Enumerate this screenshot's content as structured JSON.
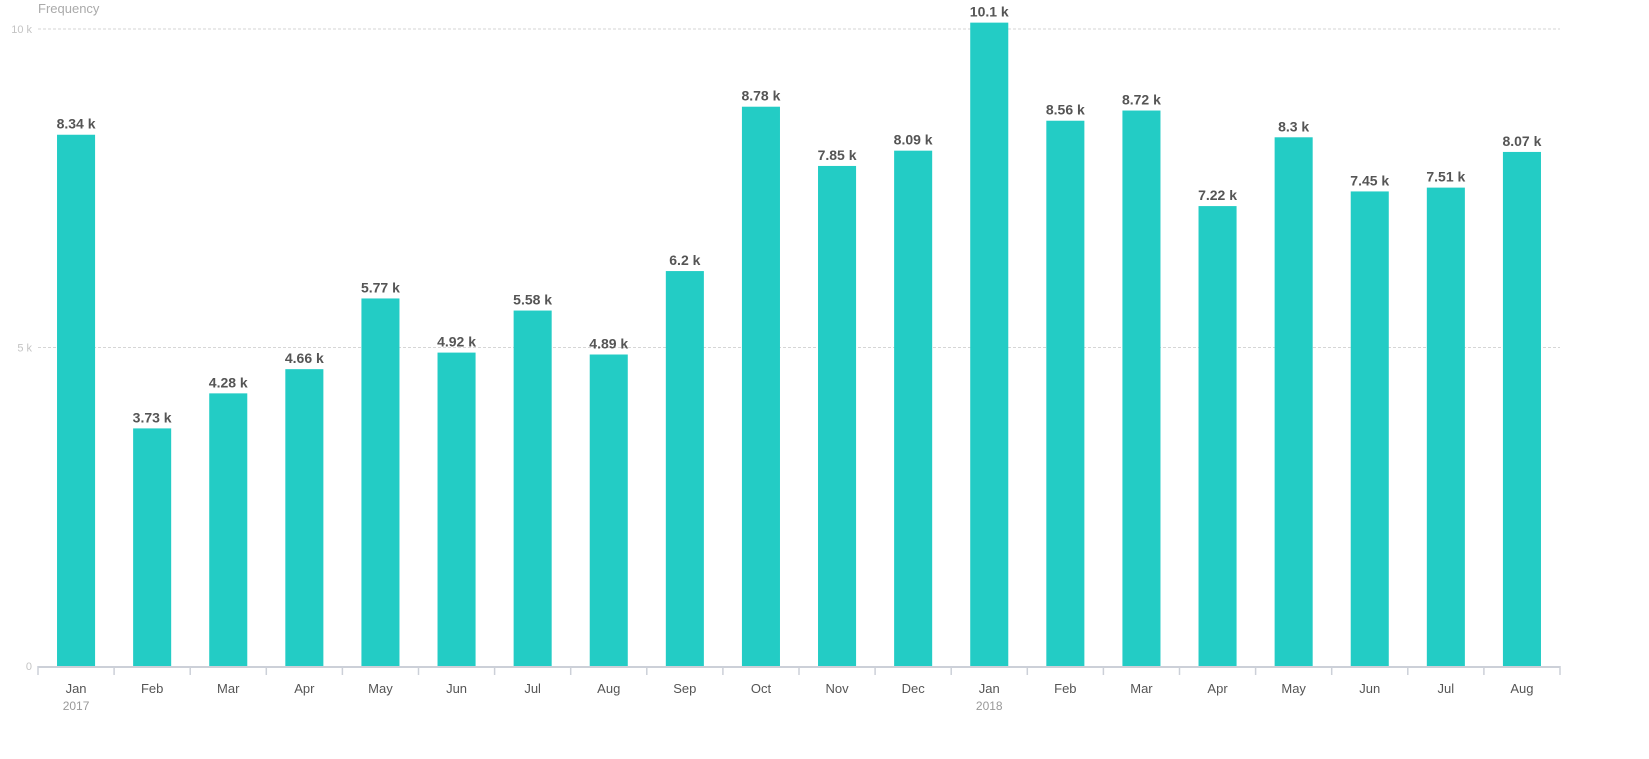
{
  "chart_data": {
    "type": "bar",
    "title": "",
    "xlabel": "",
    "ylabel": "Frequency",
    "ylim": [
      0,
      10000
    ],
    "yticks": [
      {
        "value": 0,
        "label": "0"
      },
      {
        "value": 5000,
        "label": "5 k"
      },
      {
        "value": 10000,
        "label": "10 k"
      }
    ],
    "grid": true,
    "bar_color": "#23ccc5",
    "categories": [
      "Jan",
      "Feb",
      "Mar",
      "Apr",
      "May",
      "Jun",
      "Jul",
      "Aug",
      "Sep",
      "Oct",
      "Nov",
      "Dec",
      "Jan",
      "Feb",
      "Mar",
      "Apr",
      "May",
      "Jun",
      "Jul",
      "Aug"
    ],
    "year_labels": [
      {
        "index": 0,
        "label": "2017"
      },
      {
        "index": 12,
        "label": "2018"
      }
    ],
    "values": [
      8340,
      3730,
      4280,
      4660,
      5770,
      4920,
      5580,
      4890,
      6200,
      8780,
      7850,
      8090,
      10100,
      8560,
      8720,
      7220,
      8300,
      7450,
      7510,
      8070
    ],
    "data_labels": [
      "8.34 k",
      "3.73 k",
      "4.28 k",
      "4.66 k",
      "5.77 k",
      "4.92 k",
      "5.58 k",
      "4.89 k",
      "6.2 k",
      "8.78 k",
      "7.85 k",
      "8.09 k",
      "10.1 k",
      "8.56 k",
      "8.72 k",
      "7.22 k",
      "8.3 k",
      "7.45 k",
      "7.51 k",
      "8.07 k"
    ]
  }
}
